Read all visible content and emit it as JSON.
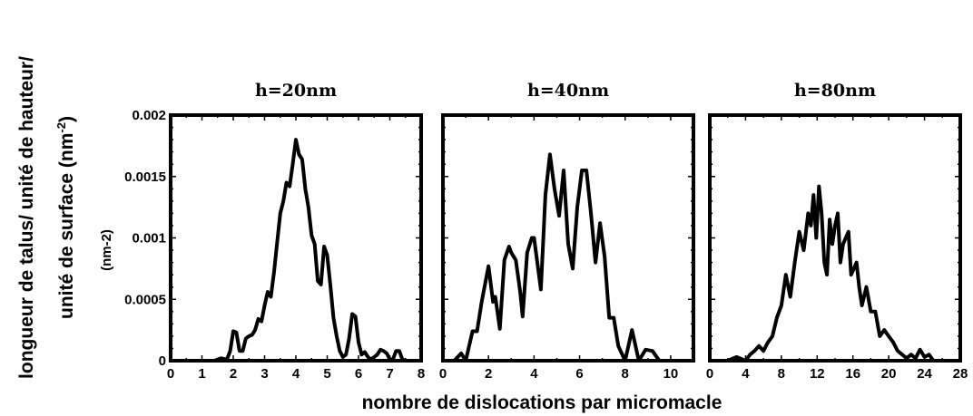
{
  "figure": {
    "ylabel_line1": "longueur de talus/ unité de hauteur/",
    "ylabel_line2": "unité de surface (nm",
    "ylabel_sup": "-2",
    "ylabel_close": ")",
    "xlabel": "nombre de dislocations par micromacle",
    "unit_note": "(nm-2)"
  },
  "chart_data": [
    {
      "type": "line",
      "title": "h=20nm",
      "xlim": [
        0,
        8
      ],
      "ylim": [
        0,
        0.002
      ],
      "xticks": [
        "0",
        "1",
        "2",
        "3",
        "4",
        "5",
        "6",
        "7",
        "8"
      ],
      "yticks": [
        "0",
        "0.0005",
        "0.001",
        "0.0015",
        "0.002"
      ],
      "x": [
        0,
        0.5,
        1,
        1.4,
        1.6,
        1.8,
        1.9,
        2.0,
        2.1,
        2.2,
        2.3,
        2.4,
        2.5,
        2.6,
        2.7,
        2.8,
        2.9,
        3.0,
        3.1,
        3.2,
        3.3,
        3.4,
        3.5,
        3.6,
        3.7,
        3.8,
        3.9,
        4.0,
        4.1,
        4.2,
        4.3,
        4.4,
        4.5,
        4.6,
        4.7,
        4.8,
        4.9,
        5.0,
        5.1,
        5.2,
        5.3,
        5.4,
        5.5,
        5.6,
        5.7,
        5.8,
        5.9,
        6.0,
        6.1,
        6.2,
        6.3,
        6.4,
        6.5,
        6.6,
        6.7,
        6.8,
        6.9,
        7.0,
        7.1,
        7.2,
        7.3,
        7.4,
        7.5,
        8
      ],
      "series": [
        {
          "values": [
            0,
            0,
            0,
            0,
            2e-05,
            1e-05,
            8e-05,
            0.00024,
            0.00023,
            8e-05,
            8e-05,
            0.00018,
            0.0002,
            0.00021,
            0.00025,
            0.00034,
            0.00032,
            0.00045,
            0.00056,
            0.00052,
            0.00072,
            0.00096,
            0.0012,
            0.0013,
            0.00145,
            0.00142,
            0.0016,
            0.0018,
            0.00168,
            0.00164,
            0.0014,
            0.00125,
            0.00102,
            0.00095,
            0.00065,
            0.00062,
            0.00093,
            0.00086,
            0.00062,
            0.00035,
            0.0002,
            8e-05,
            3e-05,
            5e-05,
            0.00018,
            0.00038,
            0.00036,
            0.00015,
            5e-05,
            7e-05,
            3e-05,
            1e-05,
            3e-05,
            5e-05,
            9e-05,
            8e-05,
            6e-05,
            1e-05,
            1e-05,
            8e-05,
            8e-05,
            1e-05,
            0,
            0
          ]
        }
      ]
    },
    {
      "type": "line",
      "title": "h=40nm",
      "xlim": [
        0,
        11
      ],
      "ylim": [
        0,
        0.002
      ],
      "xticks": [
        "0",
        "2",
        "4",
        "6",
        "8",
        "10"
      ],
      "yticks": [],
      "x": [
        0,
        0.5,
        0.8,
        1.0,
        1.3,
        1.5,
        1.7,
        2.0,
        2.2,
        2.3,
        2.5,
        2.7,
        2.9,
        3.0,
        3.2,
        3.4,
        3.5,
        3.7,
        3.9,
        4.0,
        4.3,
        4.5,
        4.7,
        4.9,
        5.1,
        5.3,
        5.5,
        5.7,
        5.9,
        6.1,
        6.3,
        6.5,
        6.7,
        6.9,
        7.1,
        7.3,
        7.5,
        7.7,
        8.0,
        8.3,
        8.6,
        8.9,
        9.2,
        9.5,
        11
      ],
      "series": [
        {
          "values": [
            0,
            0,
            6e-05,
            0,
            0.00024,
            0.00024,
            0.00048,
            0.00077,
            0.00048,
            0.00052,
            0.00026,
            0.00082,
            0.00093,
            0.00088,
            0.00082,
            0.00055,
            0.00036,
            0.00088,
            0.001,
            0.001,
            0.00058,
            0.00135,
            0.00168,
            0.0014,
            0.00118,
            0.00155,
            0.00095,
            0.00075,
            0.00125,
            0.00155,
            0.00155,
            0.0012,
            0.0008,
            0.00112,
            0.00085,
            0.00035,
            0.00035,
            0.00012,
            0,
            0.00025,
            0,
            9e-05,
            8e-05,
            0,
            0
          ]
        }
      ]
    },
    {
      "type": "line",
      "title": "h=80nm",
      "xlim": [
        0,
        28
      ],
      "ylim": [
        0,
        0.002
      ],
      "xticks": [
        "0",
        "4",
        "8",
        "12",
        "16",
        "20",
        "24",
        "28"
      ],
      "yticks": [],
      "x": [
        0,
        2,
        3,
        4,
        4.5,
        5,
        5.5,
        6,
        6.5,
        7,
        7.5,
        8,
        8.5,
        9,
        9.5,
        10,
        10.5,
        11,
        11.3,
        11.6,
        11.9,
        12.2,
        12.5,
        12.8,
        13.1,
        13.4,
        13.7,
        14,
        14.3,
        14.6,
        14.9,
        15.2,
        15.5,
        15.8,
        16.1,
        16.4,
        16.7,
        17,
        17.5,
        18,
        18.5,
        19,
        19.5,
        20,
        20.5,
        21,
        21.5,
        22,
        22.5,
        23,
        23.5,
        24,
        24.5,
        25,
        26,
        28
      ],
      "series": [
        {
          "values": [
            0,
            0,
            3e-05,
            0,
            5e-05,
            8e-05,
            0.00012,
            8e-05,
            0.00015,
            0.0002,
            0.00035,
            0.00045,
            0.0007,
            0.00052,
            0.0008,
            0.00105,
            0.0009,
            0.0012,
            0.0011,
            0.00135,
            0.001,
            0.00142,
            0.0012,
            0.0008,
            0.0007,
            0.00115,
            0.00095,
            0.0011,
            0.0012,
            0.0008,
            0.00095,
            0.001,
            0.00105,
            0.0007,
            0.00075,
            0.0008,
            0.0006,
            0.00045,
            0.0006,
            0.0004,
            0.0004,
            0.0002,
            0.00025,
            0.0002,
            0.00015,
            8e-05,
            5e-05,
            2e-05,
            5e-05,
            2e-05,
            9e-05,
            3e-05,
            5e-05,
            0,
            0,
            0
          ]
        }
      ]
    }
  ]
}
